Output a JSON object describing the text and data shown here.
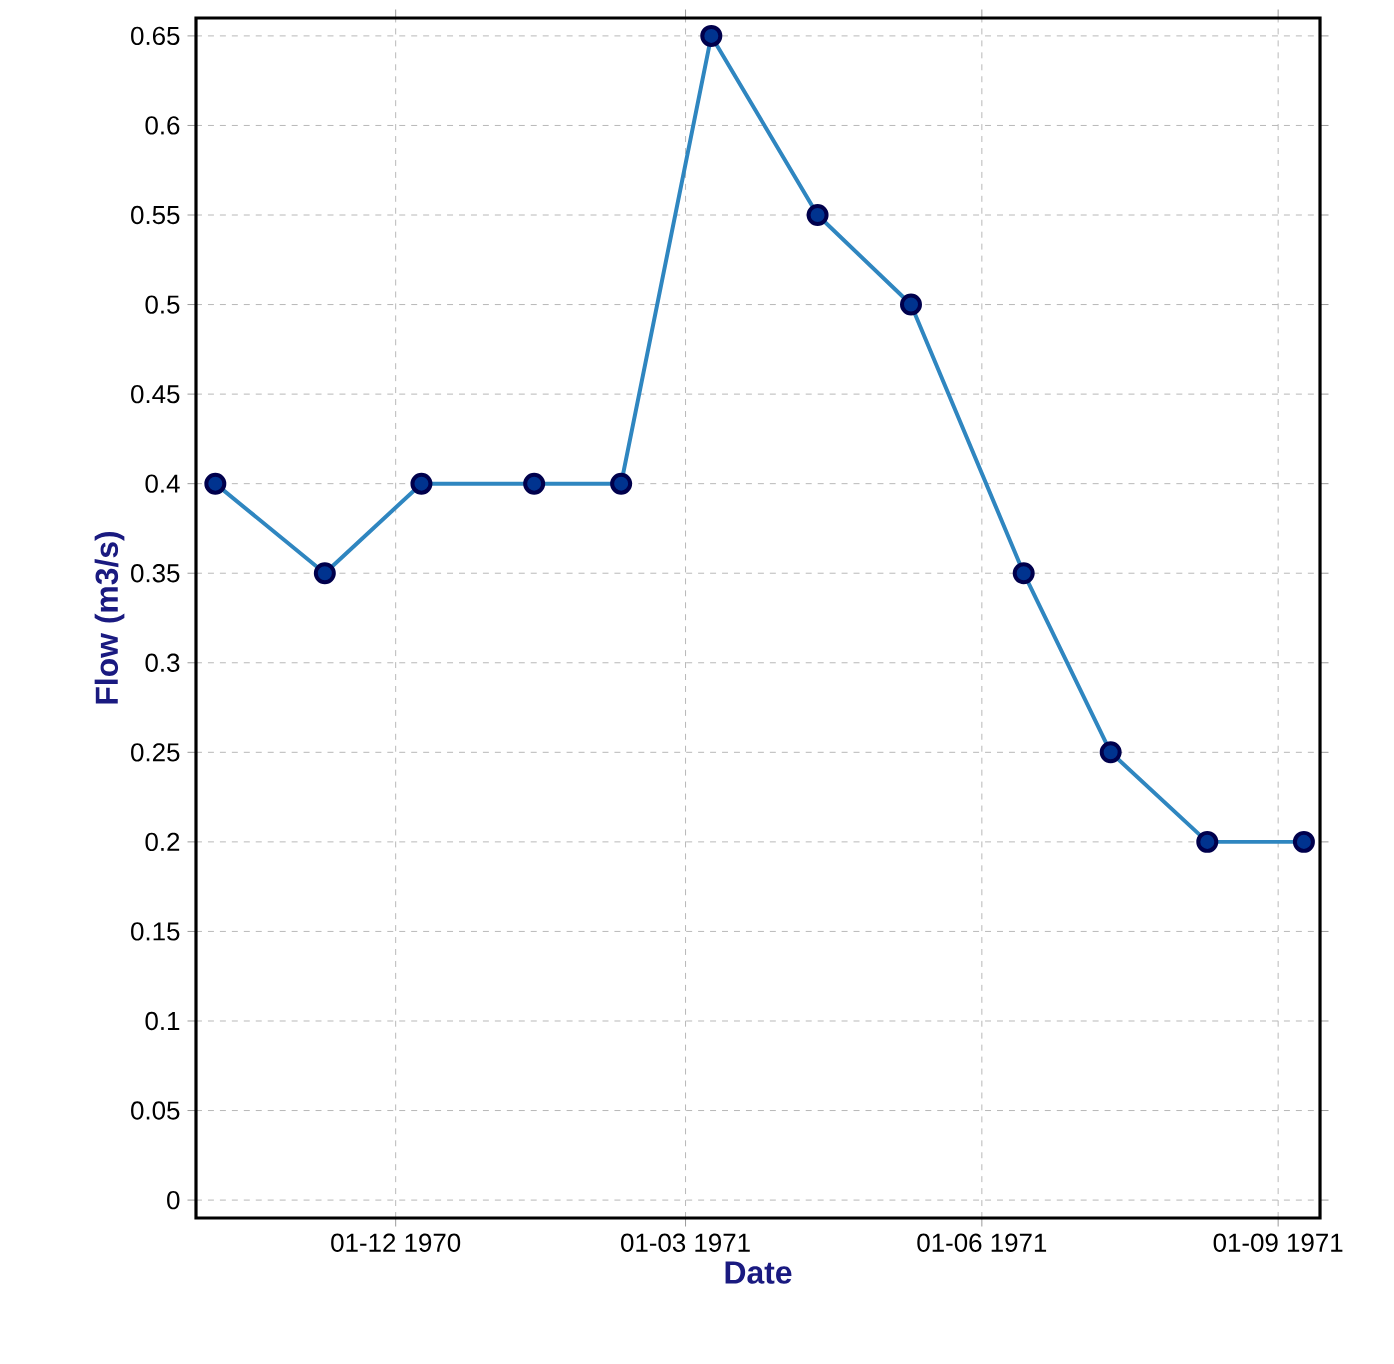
{
  "chart_data": {
    "type": "line",
    "xlabel": "Date",
    "ylabel": "Flow (m3/s)",
    "x": [
      "1970-10-06",
      "1970-11-09",
      "1970-12-09",
      "1971-01-13",
      "1971-02-09",
      "1971-03-09",
      "1971-04-11",
      "1971-05-10",
      "1971-06-14",
      "1971-07-11",
      "1971-08-10",
      "1971-09-09"
    ],
    "series": [
      {
        "color": "#2f86c0",
        "values": [
          0.4,
          0.35,
          0.4,
          0.4,
          0.4,
          0.65,
          0.55,
          0.5,
          0.35,
          0.25,
          0.2,
          0.2
        ]
      }
    ],
    "xlim": [
      "1970-09-30",
      "1971-09-14"
    ],
    "xticks": [
      {
        "value": "1970-12-01",
        "label": "01-12 1970"
      },
      {
        "value": "1971-03-01",
        "label": "01-03 1971"
      },
      {
        "value": "1971-06-01",
        "label": "01-06 1971"
      },
      {
        "value": "1971-09-01",
        "label": "01-09 1971"
      }
    ],
    "ylim": [
      -0.01,
      0.66
    ],
    "yticks": [
      0,
      0.05,
      0.1,
      0.15,
      0.2,
      0.25,
      0.3,
      0.35,
      0.4,
      0.45,
      0.5,
      0.55,
      0.6,
      0.65
    ],
    "grid": true,
    "marker": "circle",
    "line_style": "solid"
  }
}
